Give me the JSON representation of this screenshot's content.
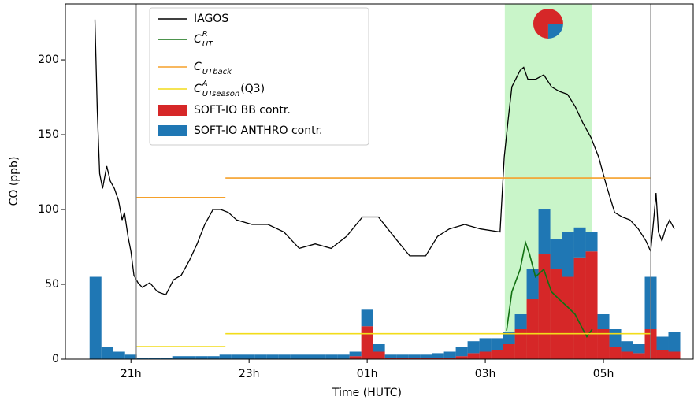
{
  "chart_data": {
    "type": "timeseries",
    "xlabel": "Time (HUTC)",
    "ylabel": "CO (ppb)",
    "xlim": [
      19.89,
      30.52
    ],
    "ylim": [
      0,
      237.4
    ],
    "xticks": [
      {
        "value": 21,
        "label": "21h"
      },
      {
        "value": 23,
        "label": "23h"
      },
      {
        "value": 25,
        "label": "01h"
      },
      {
        "value": 27,
        "label": "03h"
      },
      {
        "value": 29,
        "label": "05h"
      }
    ],
    "yticks": [
      0,
      50,
      100,
      150,
      200
    ],
    "legend": "upper left",
    "highlight_span": [
      27.33,
      28.8
    ],
    "highlight_color": "#c9f5c9",
    "vlines": [
      21.09,
      29.8
    ],
    "vline_color": "#808080",
    "pie_inset": {
      "values": [
        75,
        25
      ],
      "colors": [
        "#d62728",
        "#1f77b4"
      ]
    },
    "series": [
      {
        "name": "IAGOS",
        "kind": "line",
        "color": "#000000",
        "x": [
          20.39,
          20.43,
          20.47,
          20.52,
          20.59,
          20.65,
          20.72,
          20.79,
          20.85,
          20.89,
          20.95,
          21.0,
          21.05,
          21.12,
          21.19,
          21.32,
          21.45,
          21.59,
          21.72,
          21.85,
          21.99,
          22.12,
          22.25,
          22.39,
          22.52,
          22.65,
          22.79,
          23.05,
          23.32,
          23.59,
          23.85,
          24.12,
          24.39,
          24.65,
          24.92,
          25.19,
          25.45,
          25.72,
          25.99,
          26.19,
          26.39,
          26.65,
          26.92,
          27.25,
          27.32,
          27.39,
          27.45,
          27.59,
          27.65,
          27.72,
          27.85,
          27.99,
          28.12,
          28.25,
          28.39,
          28.52,
          28.65,
          28.79,
          28.92,
          29.05,
          29.19,
          29.32,
          29.45,
          29.59,
          29.72,
          29.8,
          29.85,
          29.89,
          29.93,
          29.99,
          30.05,
          30.12,
          30.2
        ],
        "values": [
          227,
          166,
          124,
          114,
          129,
          119,
          114,
          106,
          93,
          98,
          82,
          72,
          56,
          51,
          48,
          51,
          45,
          43,
          53,
          56,
          66,
          77,
          90,
          100,
          100,
          98,
          93,
          90,
          90,
          85,
          74,
          77,
          74,
          82,
          95,
          95,
          82,
          69,
          69,
          82,
          87,
          90,
          87,
          85,
          135,
          161,
          182,
          193,
          195,
          187,
          187,
          190,
          182,
          179,
          177,
          169,
          158,
          148,
          135,
          116,
          98,
          95,
          93,
          87,
          79,
          72,
          93,
          111,
          85,
          79,
          87,
          93,
          87
        ]
      },
      {
        "name": "C",
        "name_sub": "UT",
        "name_sup": "R",
        "kind": "line",
        "color": "#127012",
        "x": [
          27.36,
          27.45,
          27.59,
          27.68,
          27.75,
          27.85,
          27.99,
          28.12,
          28.25,
          28.39,
          28.52,
          28.65,
          28.72,
          28.81
        ],
        "values": [
          19,
          45,
          60,
          78,
          70,
          55,
          60,
          45,
          40,
          35,
          30,
          20,
          15,
          20
        ]
      },
      {
        "name": "C",
        "name_sub": "UTback",
        "kind": "line",
        "color": "#f5a02a",
        "x": [
          21.09,
          22.6,
          22.6,
          22.6,
          29.8
        ],
        "values": [
          108,
          108,
          null,
          121,
          121
        ]
      },
      {
        "name": "C",
        "name_sub": "UTseason",
        "name_sup": "A",
        "name_suffix": "(Q3)",
        "kind": "line",
        "color": "#f2dc1a",
        "x": [
          21.09,
          22.6,
          22.6,
          22.6,
          29.8
        ],
        "values": [
          8.4,
          8.4,
          null,
          17,
          17
        ]
      },
      {
        "name": "SOFT-IO BB contr.",
        "kind": "bar",
        "color": "#d62728",
        "x": [
          20.4,
          20.6,
          20.8,
          21.0,
          21.2,
          21.4,
          21.6,
          21.8,
          22.0,
          22.2,
          22.4,
          22.6,
          22.8,
          23.0,
          23.2,
          23.4,
          23.6,
          23.8,
          24.0,
          24.2,
          24.4,
          24.6,
          24.8,
          25.0,
          25.2,
          25.4,
          25.6,
          25.8,
          26.0,
          26.2,
          26.4,
          26.6,
          26.8,
          27.0,
          27.2,
          27.4,
          27.6,
          27.8,
          28.0,
          28.2,
          28.4,
          28.6,
          28.8,
          29.0,
          29.2,
          29.4,
          29.6,
          29.8,
          30.0,
          30.2
        ],
        "values": [
          0,
          0,
          0,
          0,
          0,
          0,
          0,
          0,
          0,
          0,
          0,
          0,
          0,
          0,
          0,
          0,
          0,
          0,
          0,
          0,
          0,
          0,
          2,
          22,
          5,
          1,
          1,
          1,
          1,
          1,
          1,
          2,
          4,
          5,
          6,
          10,
          20,
          40,
          70,
          60,
          55,
          68,
          72,
          20,
          8,
          5,
          4,
          20,
          6,
          5
        ]
      },
      {
        "name": "SOFT-IO ANTHRO contr.",
        "kind": "bar",
        "color": "#1f77b4",
        "x": [
          20.4,
          20.6,
          20.8,
          21.0,
          21.2,
          21.4,
          21.6,
          21.8,
          22.0,
          22.2,
          22.4,
          22.6,
          22.8,
          23.0,
          23.2,
          23.4,
          23.6,
          23.8,
          24.0,
          24.2,
          24.4,
          24.6,
          24.8,
          25.0,
          25.2,
          25.4,
          25.6,
          25.8,
          26.0,
          26.2,
          26.4,
          26.6,
          26.8,
          27.0,
          27.2,
          27.4,
          27.6,
          27.8,
          28.0,
          28.2,
          28.4,
          28.6,
          28.8,
          29.0,
          29.2,
          29.4,
          29.6,
          29.8,
          30.0,
          30.2
        ],
        "values": [
          55,
          8,
          5,
          3,
          1,
          1,
          1,
          2,
          2,
          2,
          2,
          3,
          3,
          3,
          3,
          3,
          3,
          3,
          3,
          3,
          3,
          3,
          3,
          11,
          5,
          2,
          2,
          2,
          2,
          3,
          4,
          6,
          8,
          9,
          8,
          8,
          10,
          20,
          30,
          20,
          30,
          20,
          13,
          10,
          12,
          7,
          6,
          35,
          9,
          13
        ]
      }
    ]
  }
}
